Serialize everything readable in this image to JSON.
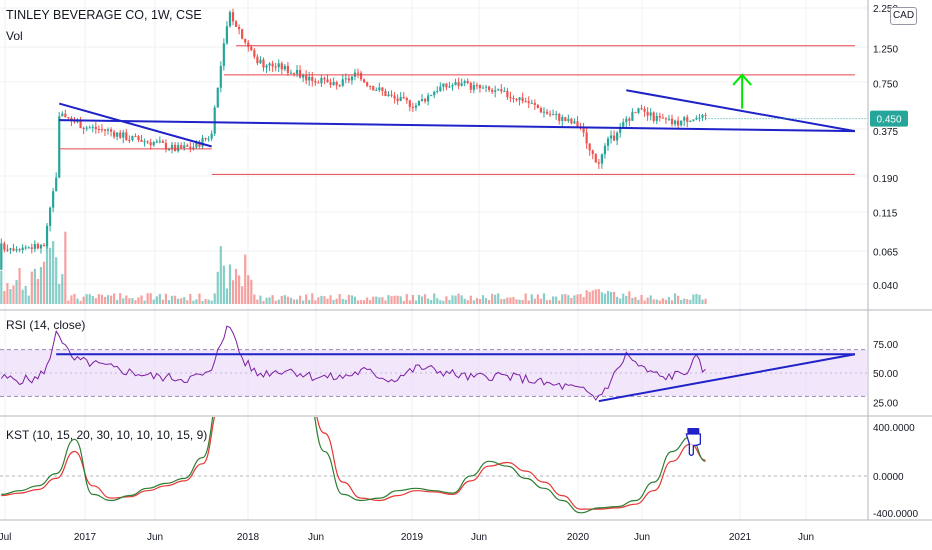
{
  "header": {
    "title": "TINLEY BEVERAGE CO, 1W, CSE",
    "volume_label": "Vol",
    "currency_badge": "CAD",
    "rsi_label": "RSI (14, close)",
    "kst_label": "KST (10, 15, 20, 30, 10, 10, 10, 15, 9)"
  },
  "colors": {
    "up": "#26a69a",
    "down": "#ef5350",
    "trendline": "#1e22c7",
    "resistance": "#e8454c",
    "rsi_line": "#7b1fa2",
    "rsi_band": "#e9d5f7",
    "kst_line": "#2e7d32",
    "kst_signal": "#e53935",
    "arrow": "#00e600",
    "price_badge": "#26a69a",
    "annotation_icon": "#1e22c7"
  },
  "chart_data": [
    {
      "type": "candlestick",
      "scale": "log",
      "x_tick_labels": [
        "Jul",
        "2017",
        "Jun",
        "2018",
        "Jun",
        "2019",
        "Jun",
        "2020",
        "Jun",
        "2021",
        "Jun"
      ],
      "y_tick_labels": [
        "2.250",
        "1.250",
        "0.750",
        "0.375",
        "0.190",
        "0.115",
        "0.065",
        "0.040"
      ],
      "last_price": "0.450",
      "grid": true,
      "price_path_dates": [
        "2016-10-10",
        "2016-11-07",
        "2016-11-14",
        "2016-11-21",
        "2016-12-05",
        "2017-01-16",
        "2017-03-06",
        "2017-04-24",
        "2017-06-19",
        "2017-08-07",
        "2017-09-18",
        "2017-10-30",
        "2017-11-13",
        "2017-11-27",
        "2017-12-11",
        "2017-12-25",
        "2018-01-15",
        "2018-02-05",
        "2018-02-26",
        "2018-04-09",
        "2018-05-21",
        "2018-07-02",
        "2018-08-13",
        "2018-09-24",
        "2018-11-05",
        "2018-12-24",
        "2019-02-11",
        "2019-04-01",
        "2019-05-20",
        "2019-07-08",
        "2019-08-26",
        "2019-10-14",
        "2019-12-02",
        "2020-01-13",
        "2020-02-24",
        "2020-03-16",
        "2020-04-06",
        "2020-04-27",
        "2020-05-18",
        "2020-06-08",
        "2020-07-06",
        "2020-08-17",
        "2020-09-28",
        "2020-11-02",
        "2020-12-07"
      ],
      "price_path_values": [
        0.07,
        0.2,
        0.45,
        0.5,
        0.45,
        0.4,
        0.38,
        0.34,
        0.32,
        0.29,
        0.3,
        0.36,
        0.7,
        1.3,
        2.1,
        1.8,
        1.4,
        1.1,
        1.0,
        0.95,
        0.85,
        0.78,
        0.72,
        0.85,
        0.72,
        0.6,
        0.55,
        0.7,
        0.75,
        0.7,
        0.65,
        0.6,
        0.5,
        0.45,
        0.4,
        0.28,
        0.24,
        0.32,
        0.36,
        0.45,
        0.5,
        0.45,
        0.42,
        0.46,
        0.45
      ],
      "annotations": [
        {
          "kind": "trendline",
          "from": [
            "2016-11-14",
            0.56
          ],
          "to": [
            "2017-10-30",
            0.3
          ]
        },
        {
          "kind": "trendline",
          "from": [
            "2016-11-14",
            0.44
          ],
          "to": [
            "2021-11-15",
            0.375
          ]
        },
        {
          "kind": "trendline",
          "from": [
            "2020-06-08",
            0.68
          ],
          "to": [
            "2021-11-15",
            0.375
          ]
        },
        {
          "kind": "horizontal",
          "value": 1.3,
          "from": "2017-12-25",
          "to": "2021-11-15"
        },
        {
          "kind": "horizontal",
          "value": 0.85,
          "from": "2017-11-27",
          "to": "2021-11-15"
        },
        {
          "kind": "horizontal",
          "value": 0.29,
          "from": "2016-11-14",
          "to": "2017-10-30"
        },
        {
          "kind": "horizontal",
          "value": 0.2,
          "from": "2017-10-30",
          "to": "2021-11-15"
        },
        {
          "kind": "arrow_up",
          "at": "2021-03-01",
          "from": 0.52,
          "to": 0.85
        }
      ]
    },
    {
      "type": "line",
      "name": "RSI (14, close)",
      "y_tick_labels": [
        "75.00",
        "50.00",
        "25.00"
      ],
      "band": [
        30,
        70
      ],
      "x": [
        "2016-07-04",
        "2016-08-15",
        "2016-09-26",
        "2016-10-24",
        "2016-11-07",
        "2016-11-21",
        "2016-12-12",
        "2017-01-30",
        "2017-04-10",
        "2017-06-19",
        "2017-09-04",
        "2017-10-30",
        "2017-11-13",
        "2017-12-04",
        "2017-12-18",
        "2018-01-08",
        "2018-02-12",
        "2018-04-23",
        "2018-06-18",
        "2018-08-20",
        "2018-10-15",
        "2018-12-17",
        "2019-02-18",
        "2019-04-15",
        "2019-06-17",
        "2019-08-19",
        "2019-10-21",
        "2019-12-16",
        "2020-01-27",
        "2020-03-09",
        "2020-03-30",
        "2020-04-20",
        "2020-05-18",
        "2020-06-08",
        "2020-07-13",
        "2020-08-31",
        "2020-10-19",
        "2020-11-16",
        "2020-12-07"
      ],
      "values": [
        46,
        44,
        45,
        60,
        88,
        78,
        62,
        58,
        52,
        47,
        45,
        50,
        72,
        88,
        85,
        62,
        49,
        53,
        47,
        46,
        52,
        44,
        55,
        51,
        46,
        48,
        45,
        40,
        38,
        34,
        28,
        36,
        52,
        66,
        54,
        46,
        50,
        62,
        50
      ],
      "annotations": [
        {
          "kind": "horizontal",
          "value": 66,
          "from": "2016-11-07",
          "to": "2021-11-15"
        },
        {
          "kind": "trendline",
          "from": [
            "2020-04-06",
            26
          ],
          "to": [
            "2021-11-15",
            66
          ]
        }
      ]
    },
    {
      "type": "line",
      "name": "KST (10, 15, 20, 30, 10, 10, 10, 15, 9)",
      "y_tick_labels": [
        "400.0000",
        "0.0000",
        "-400.0000"
      ],
      "x": [
        "2016-07-04",
        "2016-08-15",
        "2016-09-26",
        "2016-11-07",
        "2016-12-19",
        "2017-01-30",
        "2017-03-13",
        "2017-04-24",
        "2017-06-05",
        "2017-07-17",
        "2017-08-28",
        "2017-10-09",
        "2017-11-20",
        "2018-01-01",
        "2018-06-04",
        "2018-07-16",
        "2018-08-27",
        "2018-10-08",
        "2018-11-19",
        "2018-12-31",
        "2019-02-11",
        "2019-03-25",
        "2019-05-06",
        "2019-06-17",
        "2019-07-29",
        "2019-09-09",
        "2019-10-21",
        "2019-12-02",
        "2020-01-13",
        "2020-02-24",
        "2020-04-06",
        "2020-05-18",
        "2020-06-29",
        "2020-08-10",
        "2020-09-21",
        "2020-11-02",
        "2020-12-07"
      ],
      "kst": [
        -150,
        -120,
        -80,
        20,
        300,
        -150,
        -200,
        -160,
        -100,
        -60,
        -20,
        150,
        700,
        900,
        700,
        200,
        -150,
        -200,
        -180,
        -120,
        -100,
        -120,
        -140,
        0,
        120,
        80,
        -20,
        -100,
        -200,
        -300,
        -260,
        -250,
        -200,
        -50,
        200,
        320,
        120
      ],
      "signal": [
        -160,
        -140,
        -110,
        -20,
        200,
        -80,
        -180,
        -170,
        -120,
        -80,
        -40,
        100,
        600,
        850,
        750,
        350,
        -50,
        -180,
        -200,
        -160,
        -120,
        -130,
        -150,
        -40,
        80,
        110,
        40,
        -50,
        -160,
        -270,
        -270,
        -260,
        -230,
        -120,
        120,
        260,
        130
      ]
    }
  ]
}
